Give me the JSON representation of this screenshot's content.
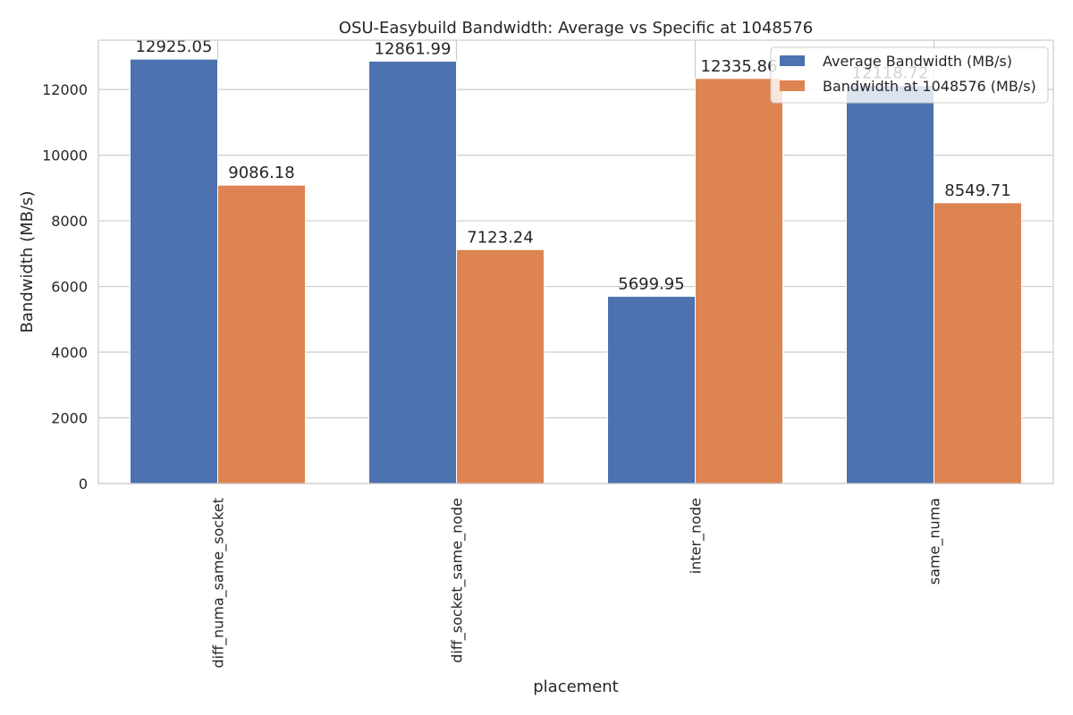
{
  "chart_data": {
    "type": "bar",
    "title": "OSU-Easybuild Bandwidth: Average vs Specific at 1048576",
    "xlabel": "placement",
    "ylabel": "Bandwidth (MB/s)",
    "ylim": [
      0,
      13500
    ],
    "yticks": [
      0,
      2000,
      4000,
      6000,
      8000,
      10000,
      12000
    ],
    "grid": true,
    "legend_position": "top-right",
    "categories": [
      "diff_numa_same_socket",
      "diff_socket_same_node",
      "inter_node",
      "same_numa"
    ],
    "series": [
      {
        "name": "Average Bandwidth (MB/s)",
        "color": "#4c72b0",
        "values": [
          12925.05,
          12861.99,
          5699.95,
          12118.72
        ],
        "labels": [
          "12925.05",
          "12861.99",
          "5699.95",
          "12118.72"
        ]
      },
      {
        "name": "Bandwidth at 1048576 (MB/s)",
        "color": "#dd8452",
        "values": [
          9086.18,
          7123.24,
          12335.86,
          8549.71
        ],
        "labels": [
          "9086.18",
          "7123.24",
          "12335.86",
          "8549.71"
        ]
      }
    ]
  }
}
